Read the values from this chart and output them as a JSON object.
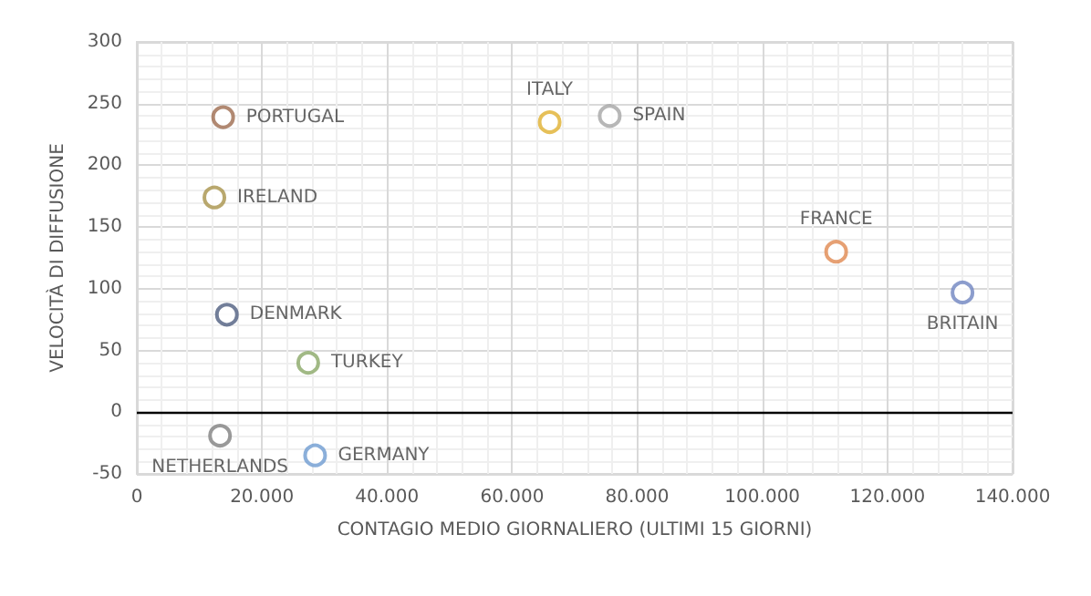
{
  "chart_data": {
    "type": "scatter",
    "xlabel": "CONTAGIO MEDIO GIORNALIERO (ULTIMI 15 GIORNI)",
    "ylabel": "VELOCITÀ DI DIFFUSIONE",
    "xlim": [
      0,
      140000
    ],
    "xticks": [
      0,
      {
        "value": 20000,
        "label": "20.000"
      },
      {
        "value": 40000,
        "label": "40.000"
      },
      {
        "value": 60000,
        "label": "60.000"
      },
      {
        "value": 80000,
        "label": "80.000"
      },
      {
        "value": 100000,
        "label": "100.000"
      },
      {
        "value": 120000,
        "label": "120.000"
      },
      {
        "value": 140000,
        "label": "140.000"
      }
    ],
    "ylim": [
      -50,
      300
    ],
    "yticks": [
      -50,
      0,
      50,
      100,
      150,
      200,
      250,
      300
    ],
    "grid": true,
    "legend": false,
    "marker": "circle",
    "ref_lines": [
      {
        "axis": "y",
        "value": 0,
        "color": "#000000"
      }
    ],
    "series": [
      {
        "name": "PORTUGAL",
        "color": "#9e6b4f",
        "x": [
          13800
        ],
        "values": [
          239
        ]
      },
      {
        "name": "IRELAND",
        "color": "#a8924a",
        "x": [
          12400
        ],
        "values": [
          174
        ]
      },
      {
        "name": "DENMARK",
        "color": "#4f5e7f",
        "x": [
          14400
        ],
        "values": [
          79
        ]
      },
      {
        "name": "TURKEY",
        "color": "#8aa866",
        "x": [
          27400
        ],
        "values": [
          40
        ]
      },
      {
        "name": "NETHERLANDS",
        "color": "#7f7f7f",
        "x": [
          13300
        ],
        "values": [
          -19
        ]
      },
      {
        "name": "GERMANY",
        "color": "#6e9bd1",
        "x": [
          28500
        ],
        "values": [
          -35
        ]
      },
      {
        "name": "ITALY",
        "color": "#e0b030",
        "x": [
          66000
        ],
        "values": [
          235
        ]
      },
      {
        "name": "SPAIN",
        "color": "#a5a5a5",
        "x": [
          75600
        ],
        "values": [
          240
        ]
      },
      {
        "name": "FRANCE",
        "color": "#e08850",
        "x": [
          111800
        ],
        "values": [
          130
        ]
      },
      {
        "name": "BRITAIN",
        "color": "#6f85c0",
        "x": [
          132000
        ],
        "values": [
          97
        ]
      }
    ]
  }
}
